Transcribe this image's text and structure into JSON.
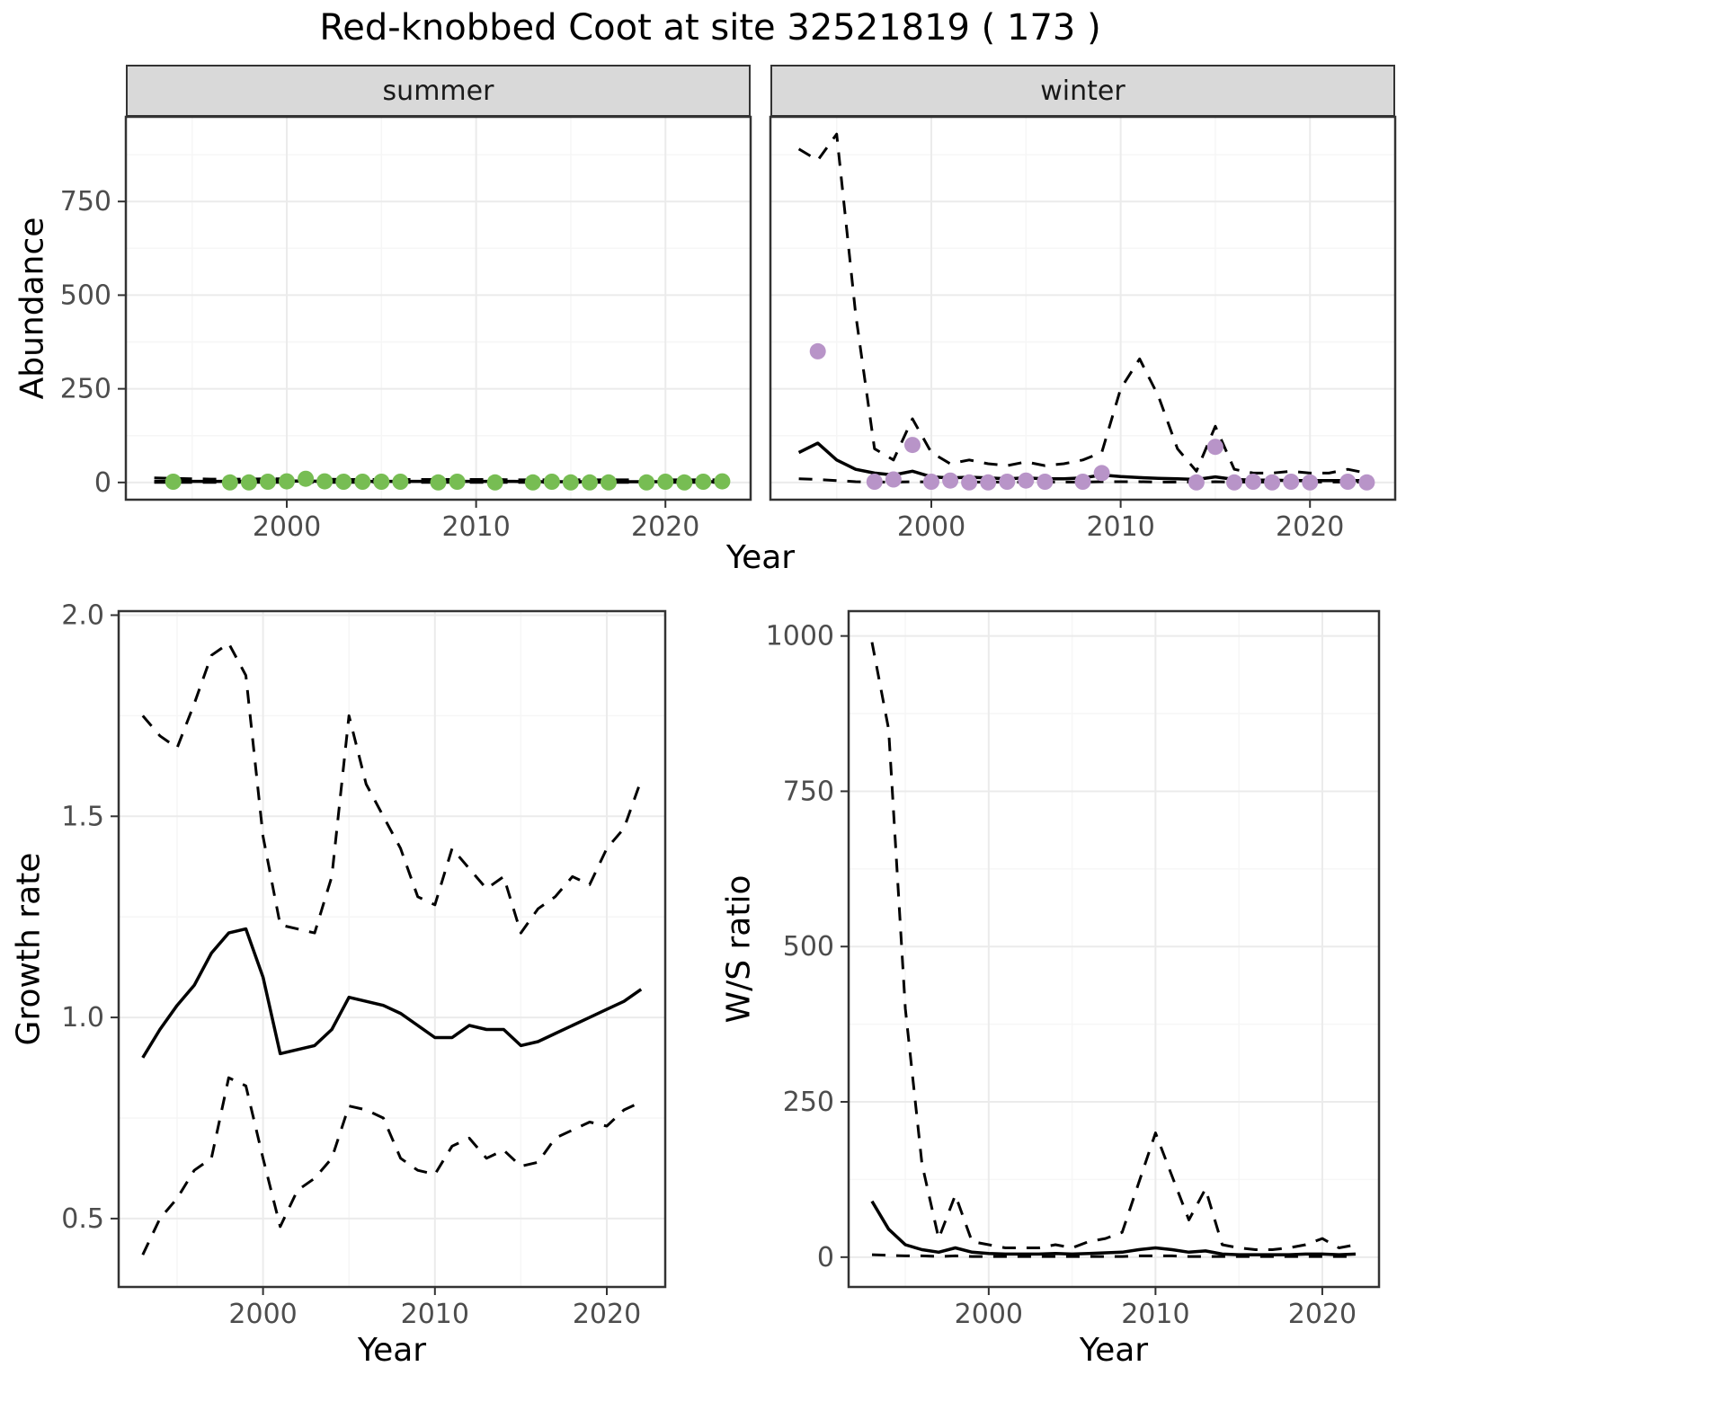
{
  "title": "Red-knobbed Coot at site 32521819 ( 173 )",
  "colors": {
    "summer_points": "#77bd53",
    "winter_points": "#b894c8",
    "model_line": "#000000",
    "strip_background": "#d9d9d9",
    "panel_border": "#333333",
    "grid_major": "#ebebeb",
    "grid_minor": "#f6f6f6",
    "tick_label": "#4d4d4d"
  },
  "chart_data": [
    {
      "id": "abundance",
      "type": "line",
      "title": "",
      "ylabel": "Abundance",
      "xlabel": "Year",
      "xlim": [
        1991.5,
        2024.5
      ],
      "ylim": [
        -46,
        976
      ],
      "xticks": [
        2000,
        2010,
        2020
      ],
      "xtick_labels": [
        "2000",
        "2010",
        "2020"
      ],
      "xminor": [
        1995,
        2005,
        2015
      ],
      "yticks": [
        0,
        250,
        500,
        750
      ],
      "ytick_labels": [
        "0",
        "250",
        "500",
        "750"
      ],
      "yminor": [
        125,
        375,
        625,
        875
      ],
      "grid": true,
      "legend": "none",
      "facets": [
        {
          "name": "summer",
          "point_color": "#77bd53",
          "points": {
            "x": [
              1994,
              1997,
              1998,
              1999,
              2000,
              2001,
              2002,
              2003,
              2004,
              2005,
              2006,
              2008,
              2009,
              2011,
              2013,
              2014,
              2015,
              2016,
              2017,
              2019,
              2020,
              2021,
              2022,
              2023
            ],
            "y": [
              2,
              0,
              0,
              2,
              3,
              10,
              3,
              2,
              2,
              2,
              2,
              0,
              2,
              0,
              0,
              2,
              0,
              0,
              0,
              0,
              2,
              0,
              2,
              3
            ]
          },
          "series": [
            {
              "name": "model-mean",
              "style": "solid",
              "x0": 1993,
              "y": [
                3,
                3,
                3,
                3,
                3,
                3,
                4,
                4,
                4,
                3,
                3,
                3,
                3,
                3,
                3,
                3,
                3,
                3,
                3,
                3,
                2,
                2,
                2,
                2,
                2,
                2,
                2,
                2,
                2,
                2,
                2
              ]
            },
            {
              "name": "ci-upper",
              "style": "dashed",
              "x0": 1993,
              "y": [
                12,
                11,
                10,
                9,
                9,
                9,
                10,
                10,
                10,
                9,
                8,
                8,
                8,
                8,
                8,
                8,
                8,
                8,
                8,
                7,
                7,
                7,
                7,
                7,
                7,
                7,
                7,
                7,
                7,
                7,
                7
              ]
            },
            {
              "name": "ci-lower",
              "style": "dashed",
              "x0": 1993,
              "y": [
                0,
                0,
                0,
                0,
                0,
                0,
                0,
                0,
                0,
                0,
                0,
                0,
                0,
                0,
                0,
                0,
                0,
                0,
                0,
                0,
                0,
                0,
                0,
                0,
                0,
                0,
                0,
                0,
                0,
                0,
                0
              ]
            }
          ]
        },
        {
          "name": "winter",
          "point_color": "#b894c8",
          "points": {
            "x": [
              1994,
              1997,
              1998,
              1999,
              2000,
              2001,
              2002,
              2003,
              2004,
              2005,
              2006,
              2008,
              2009,
              2014,
              2015,
              2016,
              2017,
              2018,
              2019,
              2020,
              2022,
              2023
            ],
            "y": [
              350,
              2,
              8,
              100,
              2,
              5,
              0,
              0,
              2,
              5,
              2,
              2,
              25,
              0,
              95,
              0,
              2,
              0,
              2,
              0,
              2,
              0
            ]
          },
          "series": [
            {
              "name": "model-mean",
              "style": "solid",
              "x0": 1993,
              "y": [
                80,
                105,
                60,
                35,
                25,
                20,
                30,
                15,
                12,
                14,
                12,
                10,
                12,
                10,
                10,
                12,
                20,
                16,
                13,
                11,
                10,
                8,
                15,
                8,
                6,
                6,
                5,
                5,
                5,
                5,
                5
              ]
            },
            {
              "name": "ci-upper",
              "style": "dashed",
              "x0": 1993,
              "y": [
                890,
                860,
                930,
                450,
                90,
                60,
                170,
                80,
                50,
                60,
                50,
                45,
                55,
                45,
                50,
                60,
                80,
                250,
                330,
                230,
                90,
                30,
                150,
                35,
                25,
                25,
                30,
                25,
                25,
                35,
                25
              ]
            },
            {
              "name": "ci-lower",
              "style": "dashed",
              "x0": 1993,
              "y": [
                10,
                8,
                5,
                2,
                1,
                1,
                2,
                1,
                1,
                1,
                1,
                1,
                1,
                1,
                1,
                1,
                2,
                2,
                2,
                1,
                1,
                1,
                2,
                1,
                1,
                1,
                1,
                1,
                1,
                1,
                1
              ]
            }
          ]
        }
      ]
    },
    {
      "id": "growth-rate",
      "type": "line",
      "title": "",
      "ylabel": "Growth rate",
      "xlabel": "Year",
      "xlim": [
        1991.6,
        2023.4
      ],
      "ylim": [
        0.33,
        2.01
      ],
      "xticks": [
        2000,
        2010,
        2020
      ],
      "xtick_labels": [
        "2000",
        "2010",
        "2020"
      ],
      "xminor": [
        1995,
        2005,
        2015
      ],
      "yticks": [
        0.5,
        1.0,
        1.5,
        2.0
      ],
      "ytick_labels": [
        "0.5",
        "1.0",
        "1.5",
        "2.0"
      ],
      "yminor": [
        0.75,
        1.25,
        1.75
      ],
      "grid": true,
      "legend": "none",
      "series": [
        {
          "name": "model-mean",
          "style": "solid",
          "x0": 1993,
          "y": [
            0.9,
            0.97,
            1.03,
            1.08,
            1.16,
            1.21,
            1.22,
            1.1,
            0.91,
            0.92,
            0.93,
            0.97,
            1.05,
            1.04,
            1.03,
            1.01,
            0.98,
            0.95,
            0.95,
            0.98,
            0.97,
            0.97,
            0.93,
            0.94,
            0.96,
            0.98,
            1.0,
            1.02,
            1.04,
            1.07
          ]
        },
        {
          "name": "ci-upper",
          "style": "dashed",
          "x0": 1993,
          "y": [
            1.75,
            1.7,
            1.67,
            1.78,
            1.9,
            1.93,
            1.85,
            1.45,
            1.23,
            1.22,
            1.21,
            1.35,
            1.75,
            1.58,
            1.5,
            1.42,
            1.3,
            1.28,
            1.42,
            1.37,
            1.32,
            1.35,
            1.21,
            1.27,
            1.3,
            1.35,
            1.33,
            1.42,
            1.47,
            1.59
          ]
        },
        {
          "name": "ci-lower",
          "style": "dashed",
          "x0": 1993,
          "y": [
            0.41,
            0.5,
            0.55,
            0.62,
            0.65,
            0.85,
            0.83,
            0.65,
            0.48,
            0.57,
            0.6,
            0.65,
            0.78,
            0.77,
            0.75,
            0.65,
            0.62,
            0.61,
            0.68,
            0.7,
            0.65,
            0.67,
            0.63,
            0.64,
            0.7,
            0.72,
            0.74,
            0.73,
            0.77,
            0.79
          ]
        }
      ]
    },
    {
      "id": "ws-ratio",
      "type": "line",
      "title": "",
      "ylabel": "W/S ratio",
      "xlabel": "Year",
      "xlim": [
        1991.6,
        2023.4
      ],
      "ylim": [
        -48,
        1040
      ],
      "xticks": [
        2000,
        2010,
        2020
      ],
      "xtick_labels": [
        "2000",
        "2010",
        "2020"
      ],
      "xminor": [
        1995,
        2005,
        2015
      ],
      "yticks": [
        0,
        250,
        500,
        750,
        1000
      ],
      "ytick_labels": [
        "0",
        "250",
        "500",
        "750",
        "1000"
      ],
      "yminor": [
        125,
        375,
        625,
        875
      ],
      "grid": true,
      "legend": "none",
      "series": [
        {
          "name": "model-mean",
          "style": "solid",
          "x0": 1993,
          "y": [
            90,
            45,
            20,
            12,
            8,
            15,
            8,
            6,
            5,
            5,
            5,
            6,
            5,
            6,
            7,
            8,
            12,
            15,
            12,
            8,
            10,
            5,
            4,
            4,
            4,
            4,
            5,
            5,
            4,
            5
          ]
        },
        {
          "name": "ci-upper",
          "style": "dashed",
          "x0": 1993,
          "y": [
            990,
            850,
            400,
            150,
            30,
            100,
            25,
            20,
            15,
            15,
            15,
            20,
            15,
            25,
            30,
            40,
            120,
            200,
            130,
            60,
            110,
            20,
            15,
            12,
            12,
            15,
            20,
            30,
            15,
            20
          ]
        },
        {
          "name": "ci-lower",
          "style": "dashed",
          "x0": 1993,
          "y": [
            4,
            3,
            2,
            2,
            1,
            2,
            1,
            1,
            1,
            1,
            1,
            1,
            1,
            1,
            1,
            1,
            2,
            2,
            2,
            1,
            1,
            1,
            1,
            1,
            1,
            1,
            1,
            1,
            1,
            1
          ]
        }
      ]
    }
  ]
}
